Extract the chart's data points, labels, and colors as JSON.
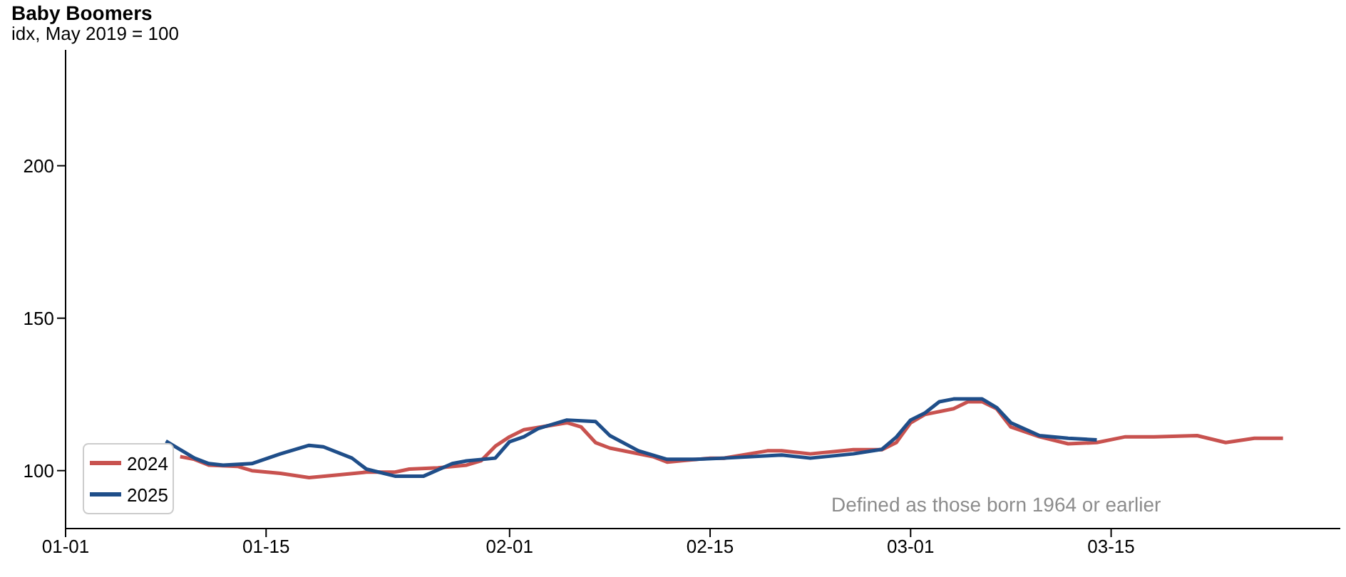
{
  "chart_data": {
    "type": "line",
    "title": "Baby Boomers",
    "subtitle": "idx, May 2019 = 100",
    "annotations": [
      "Defined as those born 1964 or earlier"
    ],
    "xlim": [
      "--01-01",
      "--03-31"
    ],
    "xticks": [
      {
        "value": "--01-01",
        "label": "01-01"
      },
      {
        "value": "--01-15",
        "label": "01-15"
      },
      {
        "value": "--02-01",
        "label": "02-01"
      },
      {
        "value": "--02-15",
        "label": "02-15"
      },
      {
        "value": "--03-01",
        "label": "03-01"
      },
      {
        "value": "--03-15",
        "label": "03-15"
      }
    ],
    "ylim": [
      81,
      238
    ],
    "yticks": [
      100,
      150,
      200
    ],
    "grid": false,
    "legend": "bottom left",
    "marker": "none",
    "line_style": "solid",
    "series": [
      {
        "name": "2024",
        "color": "#c8524f",
        "x": [
          "--01-09",
          "--01-10",
          "--01-11",
          "--01-13",
          "--01-14",
          "--01-16",
          "--01-18",
          "--01-20",
          "--01-22",
          "--01-24",
          "--01-25",
          "--01-27",
          "--01-29",
          "--01-30",
          "--01-31",
          "--02-01",
          "--02-02",
          "--02-05",
          "--02-06",
          "--02-07",
          "--02-08",
          "--02-11",
          "--02-12",
          "--02-15",
          "--02-16",
          "--02-19",
          "--02-20",
          "--02-22",
          "--02-25",
          "--02-27",
          "--02-28",
          "--03-01",
          "--03-02",
          "--03-04",
          "--03-05",
          "--03-06",
          "--03-07",
          "--03-08",
          "--03-10",
          "--03-12",
          "--03-14",
          "--03-16",
          "--03-18",
          "--03-21",
          "--03-23",
          "--03-25",
          "--03-27"
        ],
        "values": [
          104.6,
          103.7,
          101.8,
          101.4,
          100,
          99.1,
          97.7,
          98.6,
          99.5,
          99.5,
          100.5,
          100.9,
          101.8,
          103.2,
          108,
          111.1,
          113.4,
          115.7,
          114.3,
          109.2,
          107.4,
          104.6,
          102.8,
          104.1,
          104.1,
          106.5,
          106.5,
          105.5,
          106.9,
          106.9,
          109.2,
          115.7,
          118.4,
          120.3,
          122.6,
          122.6,
          120.3,
          114.3,
          111.1,
          108.8,
          109.2,
          111.1,
          111.1,
          111.5,
          109.2,
          110.6,
          110.6
        ]
      },
      {
        "name": "2025",
        "color": "#1f4e89",
        "x": [
          "--01-08",
          "--01-10",
          "--01-11",
          "--01-12",
          "--01-14",
          "--01-16",
          "--01-18",
          "--01-19",
          "--01-21",
          "--01-22",
          "--01-24",
          "--01-26",
          "--01-28",
          "--01-29",
          "--01-31",
          "--02-01",
          "--02-02",
          "--02-03",
          "--02-05",
          "--02-07",
          "--02-08",
          "--02-10",
          "--02-12",
          "--02-14",
          "--02-16",
          "--02-20",
          "--02-22",
          "--02-25",
          "--02-27",
          "--02-28",
          "--03-01",
          "--03-02",
          "--03-03",
          "--03-04",
          "--03-06",
          "--03-07",
          "--03-08",
          "--03-10",
          "--03-12",
          "--03-14"
        ],
        "values": [
          109.7,
          104.1,
          102.3,
          101.8,
          102.3,
          105.5,
          108.3,
          107.8,
          104.1,
          100.5,
          98.2,
          98.2,
          102.3,
          103.2,
          104.1,
          109.5,
          111.1,
          113.8,
          116.6,
          116.1,
          111.5,
          106.5,
          103.7,
          103.7,
          104.1,
          105.1,
          104.1,
          105.5,
          107,
          111,
          116.6,
          118.9,
          122.6,
          123.5,
          123.5,
          120.7,
          115.7,
          111.5,
          110.6,
          110.1
        ]
      }
    ]
  }
}
